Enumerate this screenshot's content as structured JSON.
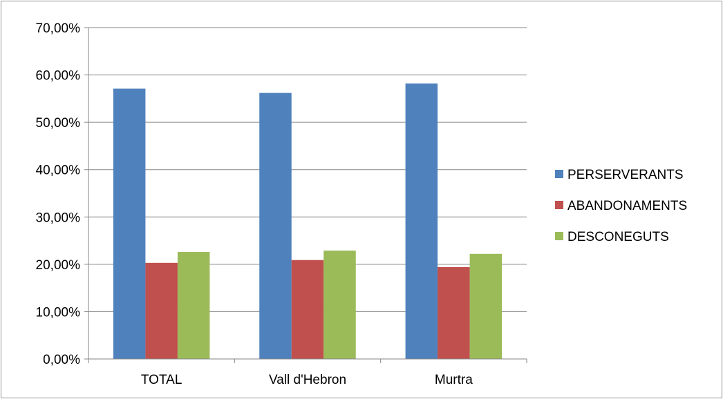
{
  "chart_data": {
    "type": "bar",
    "categories": [
      "TOTAL",
      "Vall d'Hebron",
      "Murtra"
    ],
    "series": [
      {
        "name": "PERSERVERANTS",
        "color": "#4f81bd",
        "values": [
          57.1,
          56.2,
          58.2
        ]
      },
      {
        "name": "ABANDONAMENTS",
        "color": "#c0504d",
        "values": [
          20.3,
          20.9,
          19.4
        ]
      },
      {
        "name": "DESCONEGUTS",
        "color": "#9bbb59",
        "values": [
          22.6,
          22.9,
          22.2
        ]
      }
    ],
    "yticks": [
      "0,00%",
      "10,00%",
      "20,00%",
      "30,00%",
      "40,00%",
      "50,00%",
      "60,00%",
      "70,00%"
    ],
    "ylim": [
      0,
      70
    ],
    "ytick_step": 10,
    "grid": true,
    "legend_position": "right"
  }
}
